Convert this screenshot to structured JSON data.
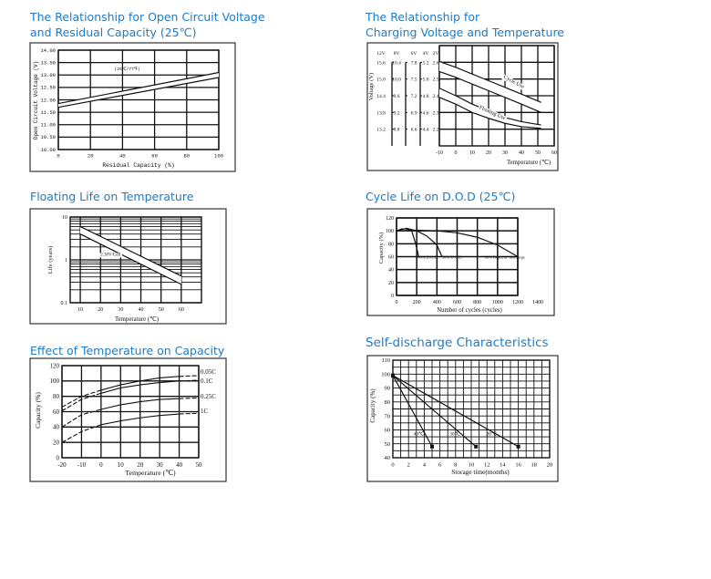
{
  "chart_data": [
    {
      "type": "line",
      "title": [
        "The Relationship for Open Circuit Voltage",
        "and Residual Capacity (25℃)"
      ],
      "xlabel": "Residual Capacity (%)",
      "ylabel": "Open Circuit Voltage (V)",
      "xlim": [
        0,
        100
      ],
      "ylim": [
        10,
        14
      ],
      "xticks": [
        "0",
        "20",
        "40",
        "60",
        "80",
        "100"
      ],
      "yticks": [
        "10.00",
        "10.50",
        "11.00",
        "11.50",
        "12.00",
        "12.50",
        "13.00",
        "13.50",
        "14.00"
      ],
      "grid": true,
      "series": [
        {
          "x": [
            0,
            100
          ],
          "y": [
            11.85,
            13.1
          ]
        },
        {
          "x": [
            0,
            100
          ],
          "y": [
            11.7,
            12.9
          ]
        }
      ],
      "annotations": [
        {
          "text": "(25℃/77℉)",
          "x": 43,
          "y": 13.2
        }
      ]
    },
    {
      "type": "line",
      "title": [
        "The Relationship for",
        "Charging Voltage and Temperature"
      ],
      "xlabel": "Temperature (℃)",
      "ylabel": "Voltage (V)",
      "xlim": [
        -10,
        60
      ],
      "ylim": [
        2.1,
        2.7
      ],
      "xticks": [
        "-10",
        "0",
        "10",
        "20",
        "30",
        "40",
        "50",
        "60"
      ],
      "voltage_scales": [
        {
          "label": "12V",
          "values": [
            "15.6",
            "15.0",
            "14.4",
            "13.8",
            "13.2"
          ]
        },
        {
          "label": "8V",
          "values": [
            "10.4",
            "10.0",
            "9.6",
            "9.2",
            "8.8"
          ]
        },
        {
          "label": "6V",
          "values": [
            "7.8",
            "7.5",
            "7.2",
            "6.9",
            "6.6"
          ]
        },
        {
          "label": "4V",
          "values": [
            "5.2",
            "5.0",
            "4.8",
            "4.6",
            "4.4"
          ]
        },
        {
          "label": "2V",
          "values": [
            "2.6",
            "2.5",
            "2.4",
            "2.3",
            "2.2"
          ]
        }
      ],
      "grid": true,
      "series": [
        {
          "x": [
            -10,
            0,
            10,
            20,
            30,
            40,
            52
          ],
          "y": [
            2.605,
            2.57,
            2.53,
            2.49,
            2.45,
            2.41,
            2.36
          ]
        },
        {
          "x": [
            -10,
            0,
            10,
            20,
            30,
            40,
            52
          ],
          "y": [
            2.545,
            2.51,
            2.47,
            2.43,
            2.39,
            2.35,
            2.3
          ]
        },
        {
          "x": [
            -10,
            0,
            10,
            20,
            30,
            40,
            52
          ],
          "y": [
            2.445,
            2.4,
            2.35,
            2.31,
            2.27,
            2.245,
            2.225
          ]
        },
        {
          "x": [
            -10,
            0,
            10,
            20,
            30,
            40,
            52
          ],
          "y": [
            2.39,
            2.35,
            2.3,
            2.265,
            2.235,
            2.215,
            2.205
          ]
        }
      ],
      "annotations": [
        {
          "text": "Cycle Use",
          "x": 35,
          "y": 2.475
        },
        {
          "text": "Floating Use",
          "x": 22,
          "y": 2.29
        }
      ]
    },
    {
      "type": "line",
      "title": [
        "Floating Life on Temperature"
      ],
      "xlabel": "Temperature (℃)",
      "ylabel": "Life (years)",
      "xlim": [
        5,
        70
      ],
      "ylim": [
        0.1,
        10
      ],
      "yscale": "log",
      "xticks": [
        "10",
        "20",
        "30",
        "40",
        "50",
        "60"
      ],
      "yticks": [
        "0.1",
        "1",
        "10"
      ],
      "grid": true,
      "series": [
        {
          "x": [
            10,
            60
          ],
          "y": [
            6,
            0.42
          ]
        },
        {
          "x": [
            10,
            60
          ],
          "y": [
            4,
            0.27
          ]
        }
      ],
      "annotations": [
        {
          "text": "2.30V/Cell",
          "x": 25,
          "y": 1.25
        }
      ]
    },
    {
      "type": "line",
      "title": [
        "Cycle Life on D.O.D (25℃)"
      ],
      "xlabel": "Number of cycles (cycles)",
      "ylabel": "Capacity (%)",
      "xlim": [
        0,
        1200
      ],
      "ylim": [
        0,
        120
      ],
      "xticks": [
        "0",
        "200",
        "400",
        "600",
        "800",
        "1000",
        "1200",
        "1400"
      ],
      "yticks": [
        "0",
        "20",
        "40",
        "60",
        "80",
        "100",
        "120"
      ],
      "grid": true,
      "series": [
        {
          "name": "100% D.O.D.",
          "x": [
            0,
            50,
            100,
            150,
            190,
            220
          ],
          "y": [
            100,
            103,
            103,
            100,
            80,
            60
          ]
        },
        {
          "name": "50% D.O.D.",
          "x": [
            0,
            100,
            200,
            300,
            400,
            450
          ],
          "y": [
            100,
            104,
            100,
            92,
            78,
            60
          ]
        },
        {
          "name": "30% Depth of discharge",
          "x": [
            0,
            200,
            400,
            600,
            800,
            1000,
            1200
          ],
          "y": [
            100,
            101,
            100,
            97,
            90,
            78,
            60
          ]
        }
      ],
      "annotations": [
        {
          "text": "100% D.O.D.",
          "x": 190,
          "y": 57
        },
        {
          "text": "50% D.O.D.",
          "x": 450,
          "y": 57
        },
        {
          "text": "30% Depth of",
          "x": 870,
          "y": 57
        },
        {
          "text": "discharge",
          "x": 1065,
          "y": 57
        }
      ]
    },
    {
      "type": "line",
      "title": [
        "Effect of Temperature on Capacity"
      ],
      "xlabel": "Temperature (℃)",
      "ylabel": "Capacity (%)",
      "xlim": [
        -20,
        50
      ],
      "ylim": [
        0,
        120
      ],
      "xticks": [
        "-20",
        "-10",
        "0",
        "10",
        "20",
        "30",
        "40",
        "50"
      ],
      "yticks": [
        "0",
        "20",
        "40",
        "60",
        "80",
        "100",
        "120"
      ],
      "grid": true,
      "series": [
        {
          "name": "0.05C",
          "x": [
            -20,
            -10,
            0,
            10,
            20,
            30,
            40,
            50
          ],
          "y": [
            66,
            80,
            88,
            95,
            100,
            104,
            106,
            107
          ]
        },
        {
          "name": "0.1C",
          "x": [
            -20,
            -10,
            0,
            10,
            20,
            30,
            40,
            50
          ],
          "y": [
            61,
            76,
            84,
            91,
            95,
            98,
            100,
            101
          ]
        },
        {
          "name": "0.25C",
          "x": [
            -20,
            -10,
            0,
            10,
            20,
            30,
            40,
            50
          ],
          "y": [
            40,
            56,
            63,
            69,
            73,
            76,
            77,
            78
          ]
        },
        {
          "name": "1C",
          "x": [
            -20,
            -10,
            0,
            10,
            20,
            30,
            40,
            50
          ],
          "y": [
            20,
            34,
            43,
            48,
            52,
            55,
            57,
            58
          ]
        }
      ]
    },
    {
      "type": "line",
      "title": [
        "Self-discharge Characteristics"
      ],
      "xlabel": "Storage time(months)",
      "ylabel": "Capacity (%)",
      "xlim": [
        0,
        20
      ],
      "ylim": [
        40,
        110
      ],
      "xticks": [
        "0",
        "2",
        "4",
        "6",
        "8",
        "10",
        "12",
        "14",
        "16",
        "18",
        "20"
      ],
      "yticks": [
        "40",
        "50",
        "60",
        "70",
        "80",
        "90",
        "100",
        "110"
      ],
      "grid": true,
      "series": [
        {
          "name": "40℃",
          "x": [
            0,
            5
          ],
          "y": [
            99,
            48
          ]
        },
        {
          "name": "30℃",
          "x": [
            0,
            10.6
          ],
          "y": [
            99,
            48
          ]
        },
        {
          "name": "20℃",
          "x": [
            0,
            16
          ],
          "y": [
            99,
            48
          ]
        }
      ],
      "annotations": [
        {
          "text": "40℃",
          "x": 3.3,
          "y": 56
        },
        {
          "text": "30℃",
          "x": 7.9,
          "y": 56
        },
        {
          "text": "20℃",
          "x": 12.6,
          "y": 56
        }
      ]
    }
  ]
}
